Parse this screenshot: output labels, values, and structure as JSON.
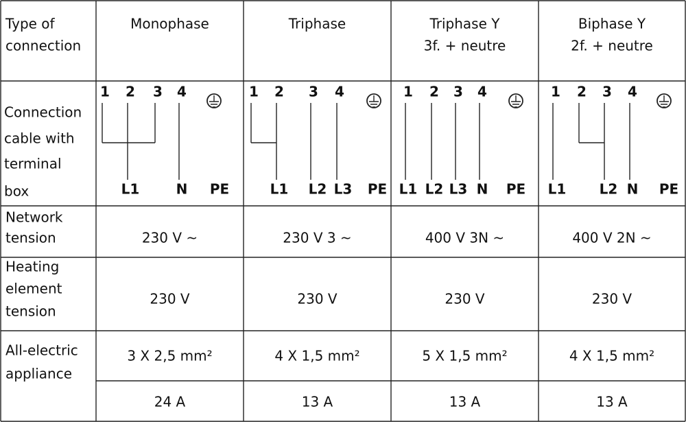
{
  "header": [
    [
      "Type of",
      "connection"
    ],
    [
      "Monophase"
    ],
    [
      "Triphase"
    ],
    [
      "Triphase Y",
      "3f. + neutre"
    ],
    [
      "Biphase Y",
      "2f. + neutre"
    ]
  ],
  "connection": {
    "label": [
      "Connection",
      "cable with",
      "terminal",
      "box"
    ],
    "columns": [
      {
        "terminals": [
          "1",
          "2",
          "3",
          "4"
        ],
        "outputs": [
          "L1",
          "N",
          "PE"
        ]
      },
      {
        "terminals": [
          "1",
          "2",
          "3",
          "4"
        ],
        "outputs": [
          "L1",
          "L2",
          "L3",
          "PE"
        ]
      },
      {
        "terminals": [
          "1",
          "2",
          "3",
          "4"
        ],
        "outputs": [
          "L1",
          "L2",
          "L3",
          "N",
          "PE"
        ]
      },
      {
        "terminals": [
          "1",
          "2",
          "3",
          "4"
        ],
        "outputs": [
          "L1",
          "L2",
          "N",
          "PE"
        ]
      }
    ]
  },
  "network": {
    "label": [
      "Network",
      "tension"
    ],
    "values": [
      "230 V ~",
      "230 V 3 ~",
      "400 V  3N  ~",
      "400 V  2N ~"
    ]
  },
  "heating": {
    "label": [
      "Heating",
      "element",
      "tension"
    ],
    "values": [
      "230 V",
      "230 V",
      "230 V",
      "230 V"
    ]
  },
  "appliance": {
    "label": [
      "All-electric",
      "appliance"
    ],
    "cables": [
      "3 X 2,5 mm²",
      "4 X 1,5 mm²",
      "5 X 1,5 mm²",
      "4 X 1,5 mm²"
    ],
    "fuses": [
      "24 A",
      "13 A",
      "13 A",
      "13 A"
    ]
  }
}
